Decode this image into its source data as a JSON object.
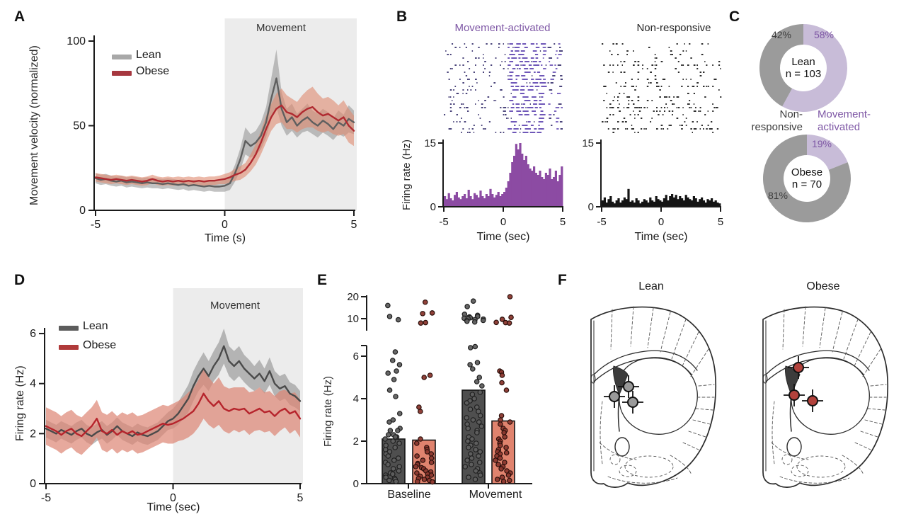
{
  "panels": {
    "a": {
      "letter": "A",
      "ylabel": "Movement velocity (normalized)",
      "xlabel": "Time (s)",
      "region_label": "Movement",
      "legend_lean": "Lean",
      "legend_obese": "Obese"
    },
    "b": {
      "letter": "B",
      "title_activated": "Movement-activated",
      "title_nonresponsive": "Non-responsive",
      "ylabel": "Firing rate (Hz)",
      "xlabel_left": "Time (sec)",
      "xlabel_right": "Time (sec)"
    },
    "c": {
      "letter": "C",
      "top_center_line1": "Lean",
      "top_center_line2": "n = 103",
      "pct_top_gray": "42%",
      "pct_top_purple": "58%",
      "bottom_center_line1": "Obese",
      "bottom_center_line2": "n = 70",
      "pct_bottom_purple": "19%",
      "pct_bottom_gray": "81%",
      "label_nonresp_line1": "Non-",
      "label_nonresp_line2": "responsive",
      "label_act_line1": "Movement-",
      "label_act_line2": "activated"
    },
    "d": {
      "letter": "D",
      "ylabel": "Firing rate (Hz)",
      "xlabel": "Time (sec)",
      "region_label": "Movement",
      "legend_lean": "Lean",
      "legend_obese": "Obese"
    },
    "e": {
      "letter": "E",
      "ylabel": "Firing rate (Hz)",
      "cat_baseline": "Baseline",
      "cat_movement": "Movement"
    },
    "f": {
      "letter": "F",
      "title_lean": "Lean",
      "title_obese": "Obese"
    }
  },
  "chart_data": [
    {
      "id": "A",
      "type": "line",
      "title": "",
      "xlabel": "Time (s)",
      "ylabel": "Movement velocity (normalized)",
      "x_start": -5,
      "x_step": 0.2,
      "xticks": [
        -5,
        0,
        5
      ],
      "yticks": [
        0,
        50,
        100
      ],
      "ylim": [
        0,
        100
      ],
      "xlim": [
        -5,
        5
      ],
      "region": {
        "label": "Movement",
        "from": 0,
        "to": 5,
        "color": "#ececec",
        "label_color": "#333333"
      },
      "series": [
        {
          "name": "Lean",
          "color": "#5f5f5f",
          "legend_color": "#a8a8a8",
          "band_color": "#8f8f8f",
          "band_opacity": 0.55,
          "values": [
            19,
            18,
            18.5,
            17.5,
            17,
            17.5,
            16.5,
            17,
            16.5,
            16,
            16.5,
            16,
            16,
            15.5,
            16,
            15.5,
            15,
            15.5,
            14.5,
            15,
            14.5,
            14,
            14.5,
            14,
            14,
            14.5,
            16,
            22,
            30,
            41,
            38,
            40,
            44,
            52,
            66,
            78,
            60,
            52,
            55,
            50,
            53,
            55,
            52,
            50,
            53,
            51,
            48,
            52,
            50,
            54,
            52
          ],
          "band_halfwidth": [
            3,
            3,
            3,
            3,
            3,
            3,
            3,
            3,
            3,
            3,
            3,
            3,
            3,
            3,
            3,
            3,
            3,
            3,
            3,
            3,
            3,
            3,
            3,
            3,
            3,
            3.5,
            4,
            5,
            6.5,
            8,
            7,
            7,
            8,
            9,
            12,
            17,
            10,
            8,
            8,
            7,
            7,
            8,
            7,
            7,
            7,
            7,
            6.5,
            7,
            6.5,
            8,
            7
          ]
        },
        {
          "name": "Obese",
          "color": "#b02a30",
          "legend_color": "#a6373f",
          "band_color": "#e08a70",
          "band_opacity": 0.6,
          "values": [
            19.5,
            19,
            18.5,
            18,
            18.5,
            18,
            17.5,
            18,
            17.5,
            17,
            17.5,
            18.5,
            17.5,
            17,
            17.5,
            17,
            17.5,
            17,
            17.5,
            17,
            17.5,
            17,
            17.5,
            17.5,
            18,
            18.5,
            19.5,
            21,
            22,
            24,
            28,
            33,
            40,
            48,
            55,
            60,
            62,
            58,
            57,
            55,
            58,
            60,
            61,
            58,
            56,
            57,
            55,
            53,
            55,
            50,
            47
          ],
          "band_halfwidth": [
            2.5,
            2.5,
            2.5,
            2.5,
            2.5,
            2.5,
            2.5,
            2.5,
            2.5,
            2.5,
            2.5,
            2.5,
            2.5,
            2.5,
            2.5,
            2.5,
            2.5,
            2.5,
            2.5,
            2.5,
            2.5,
            2.5,
            2.5,
            2.5,
            2.5,
            3,
            3,
            3.5,
            4,
            4,
            5,
            6,
            7,
            8,
            8,
            9,
            10,
            10,
            9,
            9,
            10,
            11,
            12,
            11,
            10,
            10,
            10,
            9,
            10,
            10,
            9
          ]
        }
      ]
    },
    {
      "id": "B1",
      "type": "histogram",
      "title": "Movement-activated",
      "title_color": "#7e57a5",
      "color": "#8c4ba3",
      "x_start": -5,
      "x_end": 5,
      "bins": 60,
      "xticks": [
        -5,
        0,
        5
      ],
      "yticks": [
        0,
        15
      ],
      "ylim": [
        0,
        15
      ],
      "values": [
        2.5,
        1.8,
        3.2,
        2.0,
        1.5,
        2.8,
        3.5,
        2.2,
        1.8,
        2.5,
        3.0,
        2.0,
        4.0,
        2.5,
        1.8,
        3.2,
        2.8,
        2.2,
        3.8,
        2.5,
        2.0,
        3.0,
        2.5,
        4.2,
        3.0,
        2.2,
        2.8,
        3.5,
        2.5,
        3.0,
        3.5,
        4.5,
        6.0,
        8.0,
        10.5,
        12.0,
        14.8,
        13.5,
        15.0,
        12.5,
        11.0,
        12.0,
        10.0,
        9.0,
        8.5,
        9.5,
        8.0,
        7.5,
        8.5,
        7.0,
        6.5,
        8.0,
        7.5,
        9.0,
        6.5,
        7.0,
        8.5,
        6.0,
        7.5,
        9.5
      ],
      "raster": {
        "rows": 26,
        "seed": 11,
        "burst_window_sec": [
          0.3,
          3.2
        ],
        "tick_color": "#39326e",
        "burst_color": "#6f58b8"
      }
    },
    {
      "id": "B2",
      "type": "histogram",
      "title": "Non-responsive",
      "title_color": "#262626",
      "color": "#141414",
      "x_start": -5,
      "x_end": 5,
      "bins": 60,
      "xticks": [
        -5,
        0,
        5
      ],
      "yticks": [
        0,
        15
      ],
      "ylim": [
        0,
        15
      ],
      "values": [
        1.5,
        2.2,
        1.0,
        1.8,
        2.5,
        1.2,
        0.8,
        1.5,
        2.0,
        1.0,
        1.5,
        2.2,
        1.8,
        4.2,
        1.2,
        1.5,
        1.0,
        2.0,
        1.5,
        0.8,
        1.2,
        1.8,
        1.5,
        1.0,
        2.2,
        1.5,
        1.2,
        2.5,
        1.8,
        1.5,
        1.2,
        2.0,
        2.8,
        1.5,
        2.5,
        3.0,
        2.2,
        2.8,
        1.8,
        2.5,
        2.0,
        1.5,
        2.8,
        2.2,
        1.8,
        1.5,
        2.5,
        2.0,
        1.2,
        1.8,
        2.2,
        1.5,
        1.0,
        1.8,
        1.5,
        2.0,
        1.2,
        1.5,
        1.0,
        0.8
      ],
      "raster": {
        "rows": 26,
        "seed": 23,
        "burst_window_sec": null,
        "tick_color": "#191919",
        "burst_color": "#191919"
      }
    },
    {
      "id": "C",
      "type": "donut",
      "colors": {
        "movement_activated": "#c8bcd8",
        "non_responsive": "#9b9b9b",
        "activated_text": "#7e57a5",
        "nonresponsive_text": "#3d3d3d"
      },
      "donuts": [
        {
          "group": "Lean",
          "n": 103,
          "movement_activated_pct": 58,
          "non_responsive_pct": 42
        },
        {
          "group": "Obese",
          "n": 70,
          "movement_activated_pct": 19,
          "non_responsive_pct": 81
        }
      ]
    },
    {
      "id": "D",
      "type": "line",
      "title": "",
      "xlabel": "Time (sec)",
      "ylabel": "Firing rate (Hz)",
      "x_start": -5,
      "x_step": 0.2,
      "xticks": [
        -5,
        0,
        5
      ],
      "yticks": [
        0,
        2,
        4,
        6
      ],
      "ylim": [
        0,
        6.2
      ],
      "xlim": [
        -5,
        5
      ],
      "region": {
        "label": "Movement",
        "from": 0,
        "to": 5,
        "color": "#ececec",
        "label_color": "#333333"
      },
      "series": [
        {
          "name": "Lean",
          "color": "#4a4a4a",
          "legend_color": "#5c5c5c",
          "band_color": "#909090",
          "band_opacity": 0.6,
          "values": [
            2.2,
            2.1,
            2.0,
            2.15,
            2.05,
            1.95,
            2.1,
            2.2,
            2.0,
            1.9,
            2.05,
            2.15,
            1.95,
            2.1,
            2.3,
            2.1,
            2.0,
            1.9,
            2.05,
            1.95,
            1.9,
            2.0,
            2.1,
            2.3,
            2.5,
            2.6,
            2.8,
            3.1,
            3.4,
            3.9,
            4.3,
            4.6,
            4.3,
            4.7,
            5.0,
            5.5,
            4.9,
            4.7,
            4.9,
            4.6,
            4.4,
            4.2,
            4.4,
            4.1,
            4.5,
            4.0,
            3.8,
            3.9,
            3.6,
            3.5,
            3.3
          ],
          "band_halfwidth": [
            0.35,
            0.35,
            0.35,
            0.35,
            0.35,
            0.35,
            0.35,
            0.35,
            0.35,
            0.35,
            0.35,
            0.35,
            0.35,
            0.35,
            0.35,
            0.35,
            0.35,
            0.35,
            0.35,
            0.35,
            0.35,
            0.35,
            0.35,
            0.35,
            0.35,
            0.4,
            0.45,
            0.5,
            0.55,
            0.6,
            0.6,
            0.65,
            0.6,
            0.6,
            0.65,
            0.7,
            0.6,
            0.6,
            0.6,
            0.55,
            0.55,
            0.5,
            0.55,
            0.5,
            0.55,
            0.5,
            0.5,
            0.5,
            0.45,
            0.45,
            0.4
          ]
        },
        {
          "name": "Obese",
          "color": "#b6242c",
          "legend_color": "#b03a3a",
          "band_color": "#dd8474",
          "band_opacity": 0.7,
          "values": [
            2.3,
            2.2,
            2.1,
            1.95,
            2.1,
            2.2,
            2.0,
            1.9,
            2.1,
            2.3,
            2.6,
            2.1,
            2.0,
            2.15,
            1.95,
            2.1,
            2.0,
            2.1,
            1.95,
            2.0,
            2.1,
            2.2,
            2.3,
            2.4,
            2.35,
            2.4,
            2.5,
            2.6,
            2.75,
            2.9,
            3.2,
            3.6,
            3.3,
            3.1,
            3.3,
            3.0,
            2.9,
            3.0,
            2.95,
            3.0,
            2.8,
            2.9,
            3.0,
            2.85,
            2.9,
            2.7,
            2.9,
            3.0,
            2.8,
            2.9,
            2.6
          ],
          "band_halfwidth": [
            0.75,
            0.75,
            0.75,
            0.75,
            0.75,
            0.75,
            0.75,
            0.75,
            0.75,
            0.75,
            0.75,
            0.75,
            0.75,
            0.75,
            0.75,
            0.75,
            0.75,
            0.75,
            0.75,
            0.75,
            0.75,
            0.75,
            0.75,
            0.75,
            0.75,
            0.8,
            0.8,
            0.85,
            0.9,
            0.9,
            0.95,
            1.0,
            0.95,
            0.9,
            0.95,
            0.9,
            0.9,
            0.85,
            0.9,
            0.85,
            0.85,
            0.8,
            0.85,
            0.8,
            0.8,
            0.8,
            0.8,
            0.75,
            0.8,
            0.75,
            0.75
          ]
        }
      ]
    },
    {
      "id": "E",
      "type": "bar-scatter",
      "ylabel": "Firing rate (Hz)",
      "categories": [
        "Baseline",
        "Movement"
      ],
      "yticks_lower": [
        0,
        2,
        4,
        6
      ],
      "yticks_upper": [
        10,
        20
      ],
      "axis_break": [
        6.5,
        8
      ],
      "groups": [
        {
          "name": "Lean Baseline",
          "bar": 2.1,
          "bar_color": "#4f4f4f",
          "dot_color": "#5f5f5f",
          "dot_stroke": "#1f1f1f",
          "points_low": [
            6.2,
            5.8,
            5.6,
            5.3,
            5.2,
            4.9,
            4.4,
            4.1,
            3.3,
            3.0,
            2.9,
            2.6,
            2.5,
            2.5,
            2.3,
            2.3,
            2.2,
            2.2,
            2.1,
            2.0,
            1.9,
            1.8,
            1.7,
            1.6,
            1.5,
            1.4,
            1.3,
            1.2,
            1.1,
            1.0,
            0.9,
            0.8,
            0.7,
            0.6,
            0.5,
            0.45,
            0.4,
            0.3,
            0.25,
            0.2,
            0.15,
            0.1
          ],
          "points_high": [
            16,
            11,
            9.5
          ]
        },
        {
          "name": "Obese Baseline",
          "bar": 2.05,
          "bar_color": "#e0836e",
          "dot_color": "#8a372e",
          "dot_stroke": "#2a0f0b",
          "points_low": [
            5.1,
            5.0,
            3.6,
            3.4,
            2.1,
            1.9,
            1.7,
            1.6,
            1.5,
            1.4,
            1.3,
            1.2,
            1.1,
            1.0,
            0.95,
            0.9,
            0.8,
            0.75,
            0.7,
            0.6,
            0.55,
            0.5,
            0.45,
            0.4,
            0.35,
            0.3,
            0.25,
            0.2,
            0.15,
            0.1,
            0.08
          ],
          "points_high": [
            17.5,
            12.6,
            12.3,
            8.2,
            8.0
          ]
        },
        {
          "name": "Lean Movement",
          "bar": 4.4,
          "bar_color": "#4f4f4f",
          "dot_color": "#5f5f5f",
          "dot_stroke": "#1f1f1f",
          "points_low": [
            6.45,
            6.4,
            5.7,
            5.6,
            5.4,
            5.0,
            4.8,
            4.6,
            4.3,
            4.2,
            4.0,
            3.9,
            3.8,
            3.6,
            3.5,
            3.4,
            3.2,
            3.1,
            3.0,
            2.9,
            2.8,
            2.7,
            2.6,
            2.5,
            2.4,
            2.2,
            2.1,
            2.0,
            1.9,
            1.8,
            1.7,
            1.6,
            1.5,
            1.4,
            1.3,
            1.2,
            1.1,
            1.0,
            0.9,
            0.8,
            0.7,
            0.6,
            0.5,
            0.4,
            0.3,
            0.2
          ],
          "points_high": [
            18,
            15.5,
            12,
            11.5,
            11,
            10.8,
            10.6,
            10.4,
            10.2,
            10,
            9.8,
            9.6,
            9.2,
            9,
            8.8,
            8.5
          ]
        },
        {
          "name": "Obese Movement",
          "bar": 2.95,
          "bar_color": "#e0836e",
          "dot_color": "#8a372e",
          "dot_stroke": "#2a0f0b",
          "points_low": [
            5.3,
            5.25,
            5.1,
            4.75,
            4.4,
            3.2,
            3.0,
            2.9,
            2.8,
            2.6,
            2.5,
            2.4,
            2.2,
            2.1,
            2.0,
            1.9,
            1.8,
            1.7,
            1.6,
            1.5,
            1.45,
            1.4,
            1.3,
            1.2,
            1.1,
            1.0,
            0.9,
            0.8,
            0.7,
            0.6,
            0.5,
            0.4,
            0.3,
            0.2,
            0.15,
            0.1
          ],
          "points_high": [
            20,
            10.6,
            9.7,
            8.3,
            8.2,
            8.0
          ]
        }
      ]
    },
    {
      "id": "F",
      "type": "atlas-markers",
      "lean": {
        "color": "#9a9a9a",
        "points": [
          {
            "x": 71,
            "y": 119
          },
          {
            "x": 51,
            "y": 133
          },
          {
            "x": 77,
            "y": 141
          }
        ]
      },
      "obese": {
        "color": "#b2423c",
        "points": [
          {
            "x": 68,
            "y": 92
          },
          {
            "x": 62,
            "y": 131
          },
          {
            "x": 88,
            "y": 139
          }
        ]
      }
    }
  ]
}
